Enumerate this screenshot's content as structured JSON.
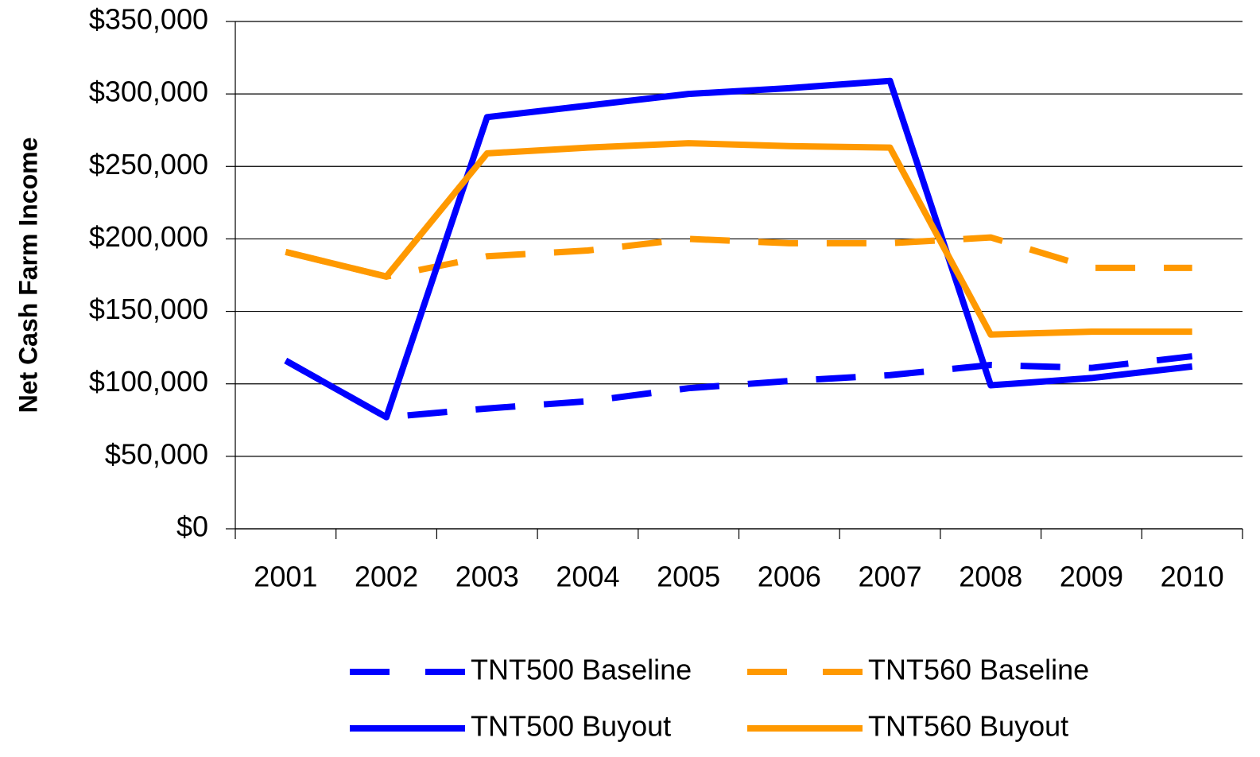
{
  "chart_data": {
    "type": "line",
    "y_label": "Net Cash Farm Income",
    "categories": [
      "2001",
      "2002",
      "2003",
      "2004",
      "2005",
      "2006",
      "2007",
      "2008",
      "2009",
      "2010"
    ],
    "series": [
      {
        "name": "TNT500 Baseline",
        "color": "#0000ff",
        "style": "dashed",
        "values": [
          116000,
          77000,
          83000,
          88000,
          97000,
          102000,
          106000,
          113000,
          111000,
          119000
        ]
      },
      {
        "name": "TNT560 Baseline",
        "color": "#ff9900",
        "style": "dashed",
        "values": [
          191000,
          174000,
          188000,
          192000,
          200000,
          197000,
          197000,
          201000,
          180000,
          180000
        ]
      },
      {
        "name": "TNT500 Buyout",
        "color": "#0000ff",
        "style": "solid",
        "values": [
          116000,
          77000,
          284000,
          292000,
          300000,
          304000,
          309000,
          99000,
          104000,
          112000
        ]
      },
      {
        "name": "TNT560 Buyout",
        "color": "#ff9900",
        "style": "solid",
        "values": [
          191000,
          174000,
          259000,
          263000,
          266000,
          264000,
          263000,
          134000,
          136000,
          136000
        ]
      }
    ],
    "ylim": [
      0,
      350000
    ],
    "yticks": [
      {
        "value": 0,
        "label": "$0"
      },
      {
        "value": 50000,
        "label": "$50,000"
      },
      {
        "value": 100000,
        "label": "$100,000"
      },
      {
        "value": 150000,
        "label": "$150,000"
      },
      {
        "value": 200000,
        "label": "$200,000"
      },
      {
        "value": 250000,
        "label": "$250,000"
      },
      {
        "value": 300000,
        "label": "$300,000"
      },
      {
        "value": 350000,
        "label": "$350,000"
      }
    ],
    "grid": true,
    "legend": "bottom"
  }
}
